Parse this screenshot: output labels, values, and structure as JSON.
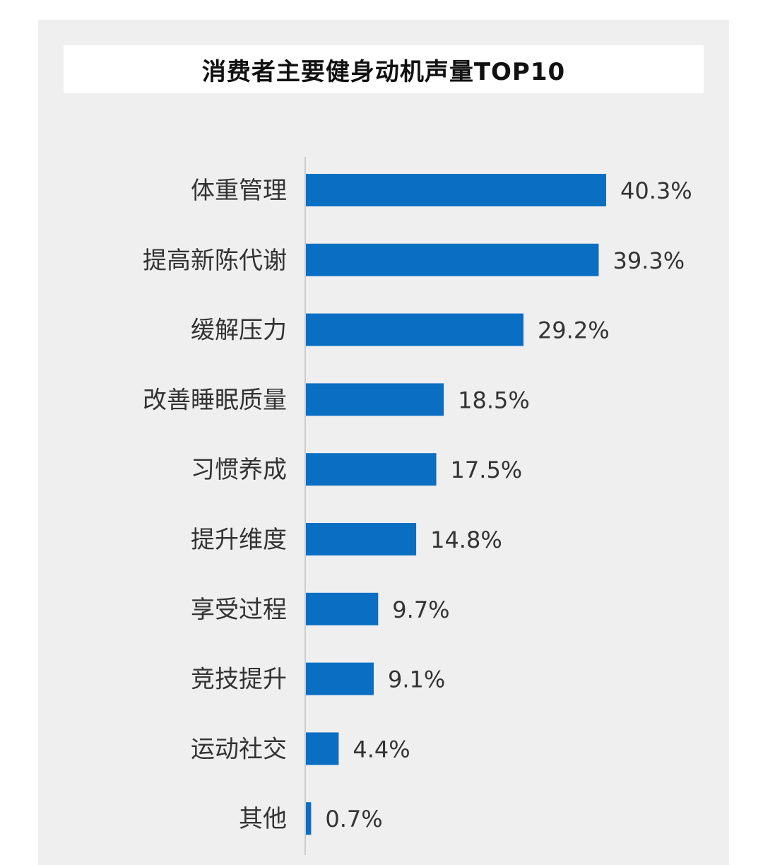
{
  "chart_data": {
    "type": "bar",
    "orientation": "horizontal",
    "title": "消费者主要健身动机声量TOP10",
    "categories": [
      "体重管理",
      "提高新陈代谢",
      "缓解压力",
      "改善睡眠质量",
      "习惯养成",
      "提升维度",
      "享受过程",
      "竞技提升",
      "运动社交",
      "其他"
    ],
    "values": [
      40.3,
      39.3,
      29.2,
      18.5,
      17.5,
      14.8,
      9.7,
      9.1,
      4.4,
      0.7
    ],
    "value_labels": [
      "40.3%",
      "39.3%",
      "29.2%",
      "18.5%",
      "17.5%",
      "14.8%",
      "9.7%",
      "9.1%",
      "4.4%",
      "0.7%"
    ],
    "unit": "%",
    "bar_color": "#0a6fc2",
    "axis_color": "#cccccc",
    "grid": false,
    "legend": "none"
  }
}
